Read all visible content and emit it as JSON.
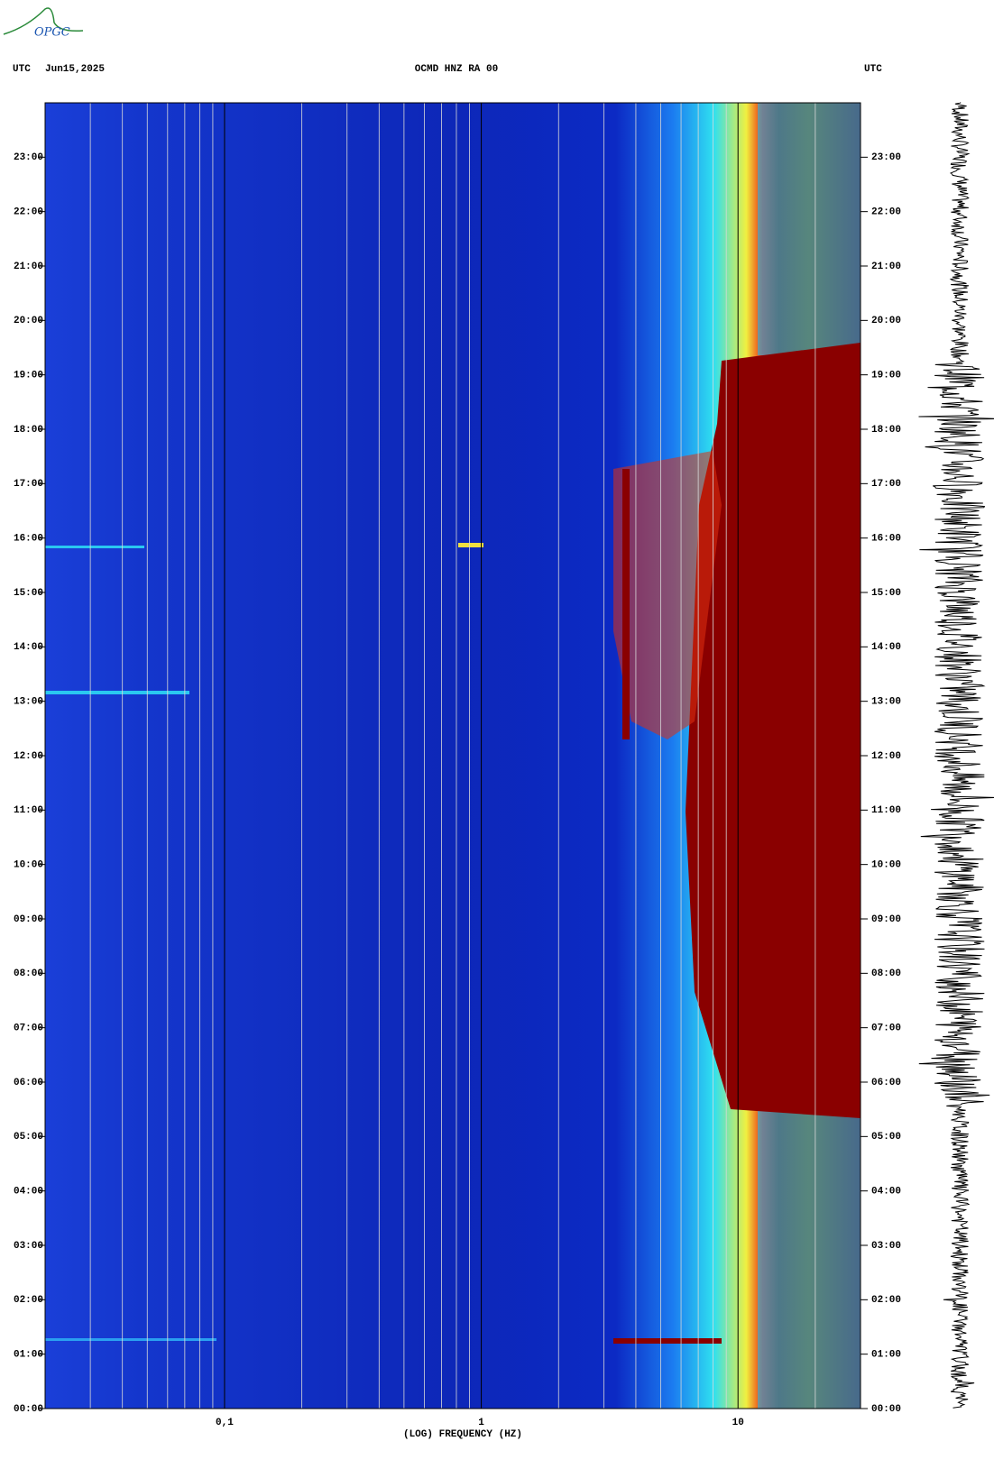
{
  "logo": "OPGC",
  "chart_data": {
    "type": "spectrogram",
    "title": "OCMD HNZ RA 00",
    "date": "Jun15,2025",
    "time_zone": "UTC",
    "x_label": "(LOG) FREQUENCY (HZ)",
    "x_log_scale": true,
    "xlim": [
      0.02,
      30
    ],
    "xticks": [
      {
        "value": 0.1,
        "label": "0,1"
      },
      1,
      10
    ],
    "x_minor_ticks": [
      0.03,
      0.04,
      0.05,
      0.06,
      0.07,
      0.08,
      0.09,
      0.2,
      0.3,
      0.4,
      0.5,
      0.6,
      0.7,
      0.8,
      0.9,
      2,
      3,
      4,
      5,
      6,
      7,
      8,
      9,
      20
    ],
    "ylim": [
      0,
      24
    ],
    "yticks": [
      {
        "value": 0,
        "label": "00:00"
      },
      {
        "value": 1,
        "label": "01:00"
      },
      {
        "value": 2,
        "label": "02:00"
      },
      {
        "value": 3,
        "label": "03:00"
      },
      {
        "value": 4,
        "label": "04:00"
      },
      {
        "value": 5,
        "label": "05:00"
      },
      {
        "value": 6,
        "label": "06:00"
      },
      {
        "value": 7,
        "label": "07:00"
      },
      {
        "value": 8,
        "label": "08:00"
      },
      {
        "value": 9,
        "label": "09:00"
      },
      {
        "value": 10,
        "label": "10:00"
      },
      {
        "value": 11,
        "label": "11:00"
      },
      {
        "value": 12,
        "label": "12:00"
      },
      {
        "value": 13,
        "label": "13:00"
      },
      {
        "value": 14,
        "label": "14:00"
      },
      {
        "value": 15,
        "label": "15:00"
      },
      {
        "value": 16,
        "label": "16:00"
      },
      {
        "value": 17,
        "label": "17:00"
      },
      {
        "value": 18,
        "label": "18:00"
      },
      {
        "value": 19,
        "label": "19:00"
      },
      {
        "value": 20,
        "label": "20:00"
      },
      {
        "value": 21,
        "label": "21:00"
      },
      {
        "value": 22,
        "label": "22:00"
      },
      {
        "value": 23,
        "label": "23:00"
      }
    ]
  }
}
